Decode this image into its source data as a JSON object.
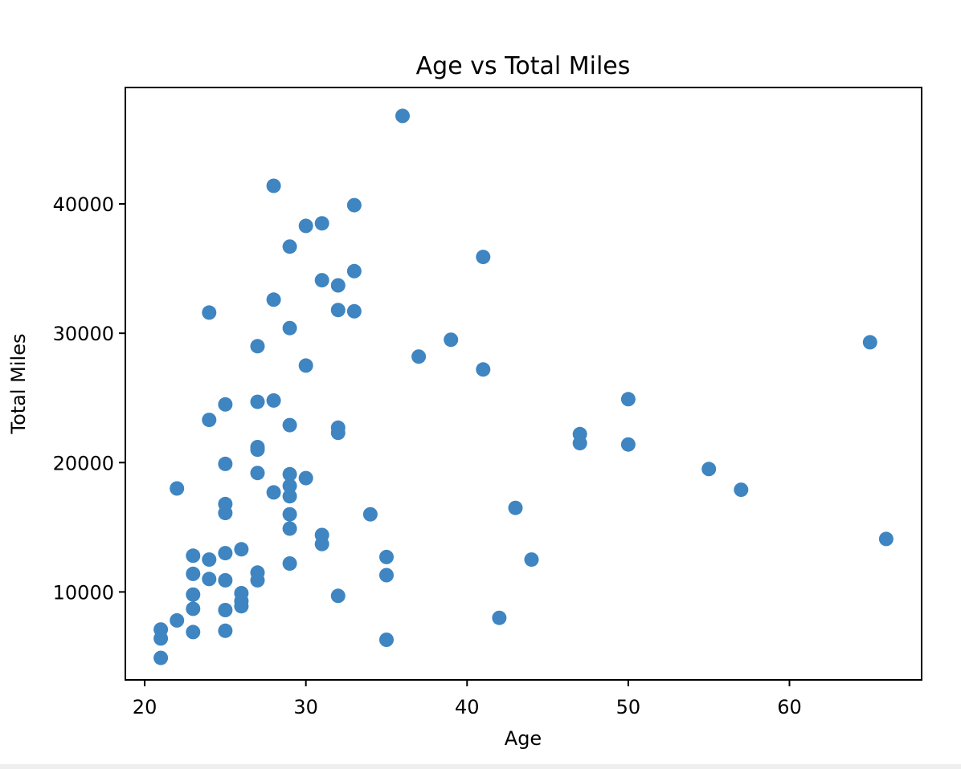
{
  "chart_data": {
    "type": "scatter",
    "title": "Age vs Total Miles",
    "xlabel": "Age",
    "ylabel": "Total Miles",
    "xlim": [
      18.8,
      68.2
    ],
    "ylim": [
      3200,
      49000
    ],
    "xticks": [
      20,
      30,
      40,
      50,
      60
    ],
    "yticks": [
      10000,
      20000,
      30000,
      40000
    ],
    "grid": false,
    "marker_color": "#3e85c1",
    "points": [
      {
        "x": 21,
        "y": 4900
      },
      {
        "x": 21,
        "y": 6400
      },
      {
        "x": 21,
        "y": 7100
      },
      {
        "x": 22,
        "y": 7800
      },
      {
        "x": 22,
        "y": 18000
      },
      {
        "x": 23,
        "y": 6900
      },
      {
        "x": 23,
        "y": 8700
      },
      {
        "x": 23,
        "y": 9800
      },
      {
        "x": 23,
        "y": 11400
      },
      {
        "x": 23,
        "y": 12800
      },
      {
        "x": 24,
        "y": 11000
      },
      {
        "x": 24,
        "y": 12500
      },
      {
        "x": 24,
        "y": 23300
      },
      {
        "x": 24,
        "y": 31600
      },
      {
        "x": 25,
        "y": 7000
      },
      {
        "x": 25,
        "y": 8600
      },
      {
        "x": 25,
        "y": 10900
      },
      {
        "x": 25,
        "y": 13000
      },
      {
        "x": 25,
        "y": 16100
      },
      {
        "x": 25,
        "y": 16800
      },
      {
        "x": 25,
        "y": 19900
      },
      {
        "x": 25,
        "y": 24500
      },
      {
        "x": 26,
        "y": 8900
      },
      {
        "x": 26,
        "y": 9300
      },
      {
        "x": 26,
        "y": 9900
      },
      {
        "x": 26,
        "y": 13300
      },
      {
        "x": 27,
        "y": 10900
      },
      {
        "x": 27,
        "y": 11500
      },
      {
        "x": 27,
        "y": 19200
      },
      {
        "x": 27,
        "y": 21000
      },
      {
        "x": 27,
        "y": 21200
      },
      {
        "x": 27,
        "y": 24700
      },
      {
        "x": 27,
        "y": 29000
      },
      {
        "x": 28,
        "y": 17700
      },
      {
        "x": 28,
        "y": 24800
      },
      {
        "x": 28,
        "y": 32600
      },
      {
        "x": 28,
        "y": 41400
      },
      {
        "x": 29,
        "y": 12200
      },
      {
        "x": 29,
        "y": 14900
      },
      {
        "x": 29,
        "y": 16000
      },
      {
        "x": 29,
        "y": 17400
      },
      {
        "x": 29,
        "y": 18200
      },
      {
        "x": 29,
        "y": 19100
      },
      {
        "x": 29,
        "y": 22900
      },
      {
        "x": 29,
        "y": 30400
      },
      {
        "x": 29,
        "y": 36700
      },
      {
        "x": 30,
        "y": 18800
      },
      {
        "x": 30,
        "y": 27500
      },
      {
        "x": 30,
        "y": 38300
      },
      {
        "x": 31,
        "y": 13700
      },
      {
        "x": 31,
        "y": 14400
      },
      {
        "x": 31,
        "y": 34100
      },
      {
        "x": 31,
        "y": 38500
      },
      {
        "x": 32,
        "y": 9700
      },
      {
        "x": 32,
        "y": 22300
      },
      {
        "x": 32,
        "y": 22700
      },
      {
        "x": 32,
        "y": 31800
      },
      {
        "x": 32,
        "y": 33700
      },
      {
        "x": 33,
        "y": 31700
      },
      {
        "x": 33,
        "y": 34800
      },
      {
        "x": 33,
        "y": 39900
      },
      {
        "x": 34,
        "y": 16000
      },
      {
        "x": 35,
        "y": 6300
      },
      {
        "x": 35,
        "y": 11300
      },
      {
        "x": 35,
        "y": 12700
      },
      {
        "x": 36,
        "y": 46800
      },
      {
        "x": 37,
        "y": 28200
      },
      {
        "x": 39,
        "y": 29500
      },
      {
        "x": 41,
        "y": 27200
      },
      {
        "x": 41,
        "y": 35900
      },
      {
        "x": 42,
        "y": 8000
      },
      {
        "x": 43,
        "y": 16500
      },
      {
        "x": 44,
        "y": 12500
      },
      {
        "x": 47,
        "y": 21500
      },
      {
        "x": 47,
        "y": 22200
      },
      {
        "x": 50,
        "y": 21400
      },
      {
        "x": 50,
        "y": 24900
      },
      {
        "x": 55,
        "y": 19500
      },
      {
        "x": 57,
        "y": 17900
      },
      {
        "x": 65,
        "y": 29300
      },
      {
        "x": 66,
        "y": 14100
      }
    ]
  }
}
